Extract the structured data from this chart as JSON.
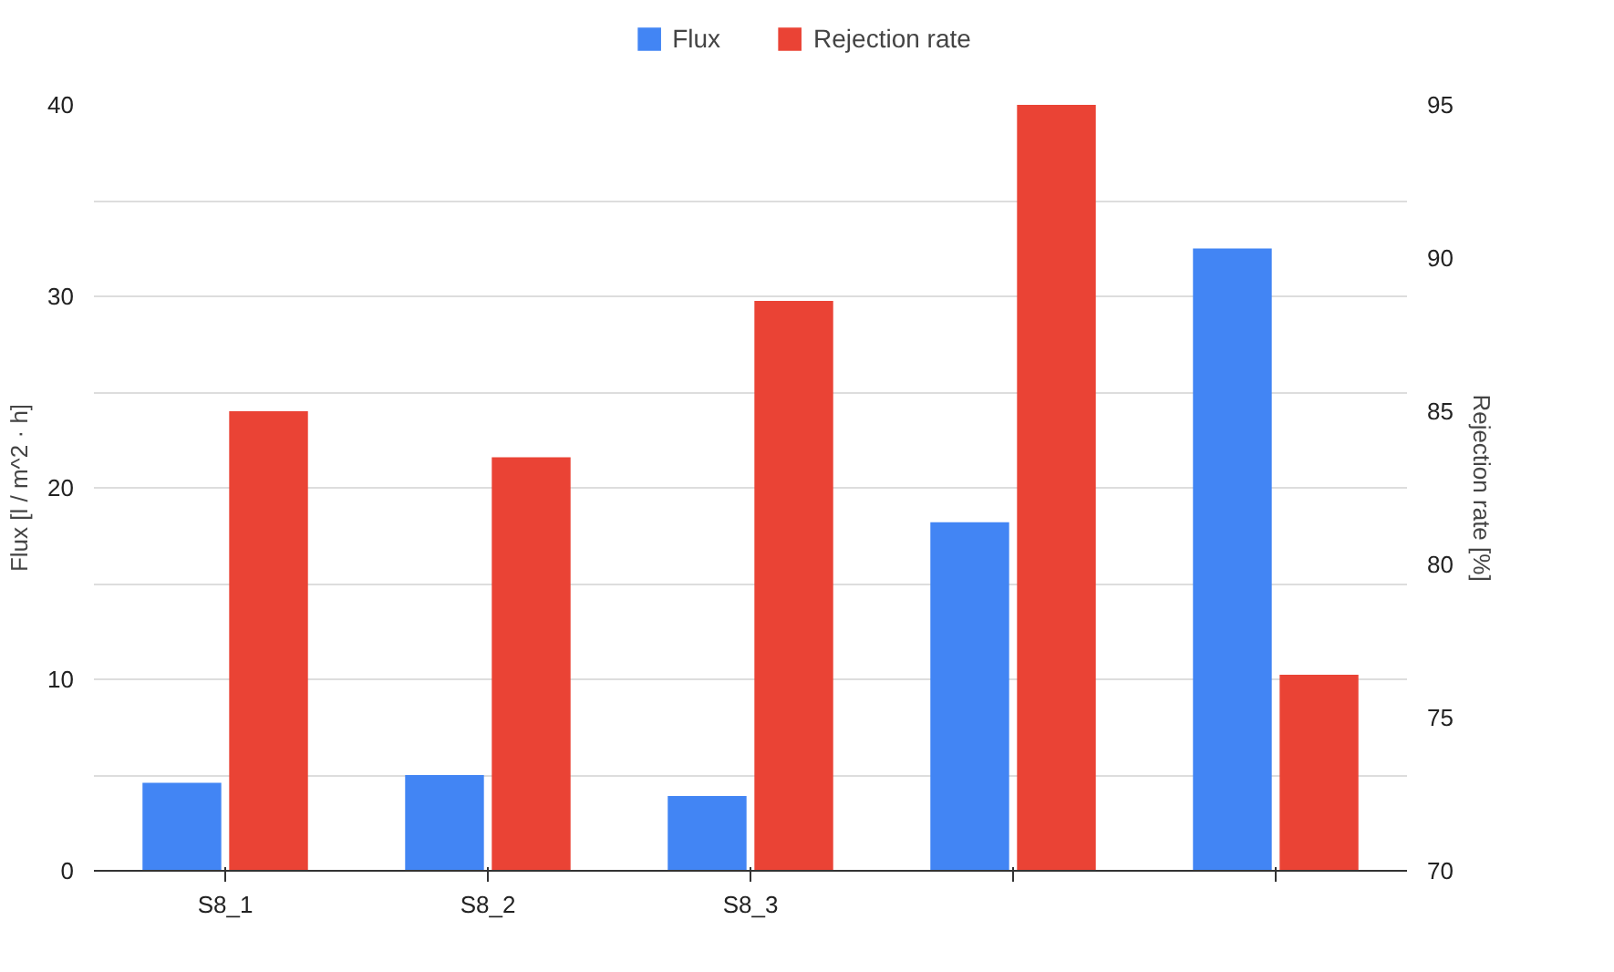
{
  "chart_data": {
    "type": "bar",
    "categories": [
      "S8_1",
      "S8_2",
      "S8_3",
      null,
      null
    ],
    "series": [
      {
        "name": "Flux",
        "color": "#4285f4",
        "values": [
          4.6,
          5.0,
          3.9,
          18.2,
          32.5
        ]
      },
      {
        "name": "Rejection rate",
        "color": "#ea4335",
        "values": [
          85.0,
          83.5,
          88.6,
          95.0,
          76.4
        ],
        "axis": "y2"
      }
    ],
    "ylabel": "Flux [l / m^2 · h]",
    "y2label": "Rejection rate [%]",
    "ylim": [
      0,
      40
    ],
    "yticks": [
      0,
      {
        "value": 5,
        "label": null
      },
      10,
      {
        "value": 15,
        "label": null
      },
      20,
      {
        "value": 25,
        "label": null
      },
      30,
      {
        "value": 35,
        "label": null
      },
      40
    ],
    "y2lim": [
      70,
      95
    ],
    "y2ticks": [
      70,
      75,
      80,
      85,
      90,
      95
    ],
    "grid": "y",
    "legend": "top"
  }
}
